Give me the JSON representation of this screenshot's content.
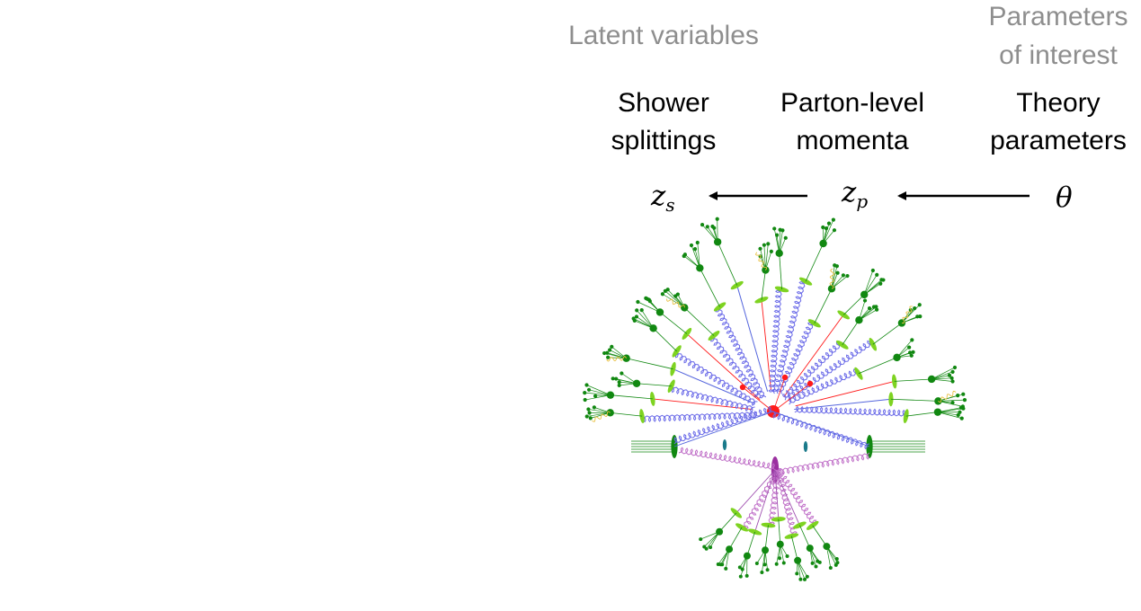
{
  "groups": {
    "latent": "Latent variables",
    "poi_line1": "Parameters",
    "poi_line2": "of interest"
  },
  "columns": {
    "shower": {
      "line1": "Shower",
      "line2": "splittings",
      "symbol": "z",
      "subscript": "s"
    },
    "parton": {
      "line1": "Parton-level",
      "line2": "momenta",
      "symbol": "z",
      "subscript": "p"
    },
    "theory": {
      "line1": "Theory",
      "line2": "parameters",
      "symbol": "θ"
    }
  },
  "colors": {
    "group_label": "#8e8e8e",
    "hard_process": "#ff1a1a",
    "initial_parton": "#5566dd",
    "gluon": "#6a6ae8",
    "hadron": "#118811",
    "cluster": "#7ed321",
    "photon": "#e8c040",
    "underlying_event": "#9b30a0",
    "beam_remnant": "#1a7a8a"
  },
  "illustration": {
    "name": "parton-shower-event",
    "icon": "event-display-icon"
  }
}
